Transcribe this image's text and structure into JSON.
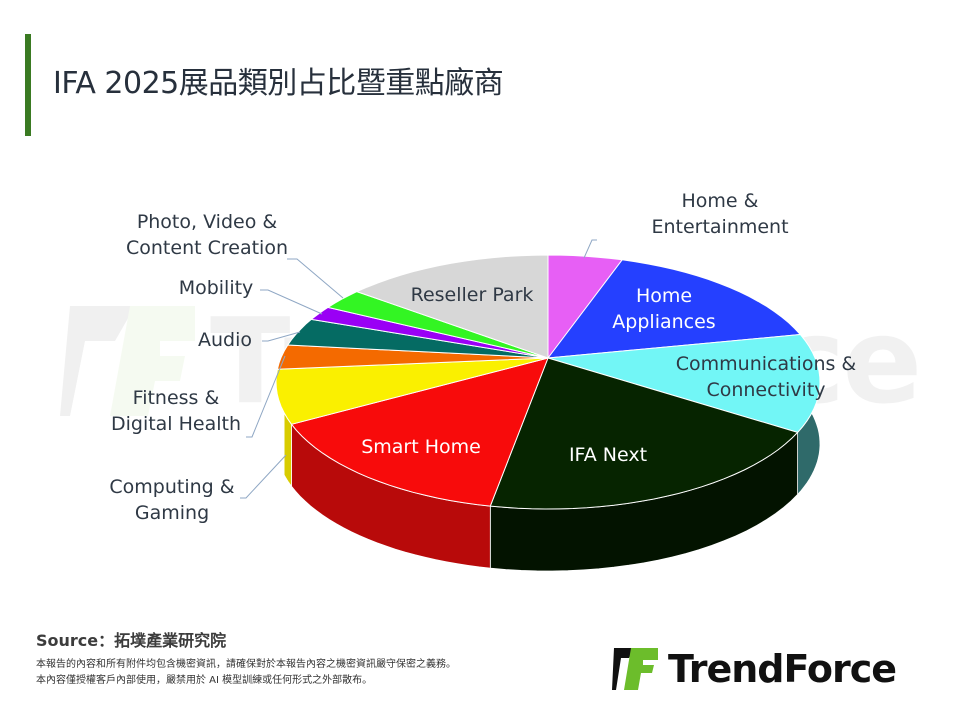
{
  "header": {
    "title": "IFA 2025展品類別占比暨重點廠商",
    "accent_color": "#3a7a22"
  },
  "chart_data": {
    "type": "pie",
    "title": "IFA 2025展品類別占比暨重點廠商",
    "style": "3d-pie",
    "start_angle_deg": 0,
    "direction": "clockwise",
    "slices": [
      {
        "label": "Home & Entertainment",
        "value": 4.4,
        "color": "#e75ff5",
        "side": "#b34bc0"
      },
      {
        "label": "Home Appliances",
        "value": 14.5,
        "color": "#2540ff",
        "side": "#1a2fbf"
      },
      {
        "label": "Communications & Connectivity",
        "value": 12.6,
        "color": "#72f6f6",
        "side": "#2f6a6a"
      },
      {
        "label": "IFA Next",
        "value": 21.9,
        "color": "#062400",
        "side": "#031300"
      },
      {
        "label": "Smart Home",
        "value": 16.2,
        "color": "#f80b0b",
        "side": "#b80a0a"
      },
      {
        "label": "Computing & Gaming",
        "value": 7.0,
        "color": "#faf000",
        "side": "#d8cc00"
      },
      {
        "label": "Fitness & Digital Health",
        "value": 3.1,
        "color": "#f46a00",
        "side": "#c05300"
      },
      {
        "label": "Audio",
        "value": 3.5,
        "color": "#056b63",
        "side": "#034a45"
      },
      {
        "label": "Mobility",
        "value": 1.8,
        "color": "#9a00f5",
        "side": "#6d00ad"
      },
      {
        "label": "Photo, Video & Content Creation",
        "value": 2.6,
        "color": "#33f523",
        "side": "#25b019"
      },
      {
        "label": "Reseller Park",
        "value": 12.4,
        "color": "#d7d7d7",
        "side": "#a8a8a8"
      }
    ],
    "legend": "none (data labels with leader lines)"
  },
  "labels": {
    "home_entertainment": [
      "Home &",
      "Entertainment"
    ],
    "home_appliances": [
      "Home",
      "Appliances"
    ],
    "communications": [
      "Communications &",
      "Connectivity"
    ],
    "ifa_next": "IFA Next",
    "smart_home": "Smart Home",
    "computing": [
      "Computing &",
      "Gaming"
    ],
    "fitness": [
      "Fitness &",
      "Digital Health"
    ],
    "audio": "Audio",
    "mobility": "Mobility",
    "photo": [
      "Photo, Video &",
      "Content Creation"
    ],
    "reseller": "Reseller Park"
  },
  "footer": {
    "source": "Source：拓墣產業研究院",
    "disclaimer_1": "本報告的內容和所有附件均包含機密資訊，請確保對於本報告內容之機密資訊嚴守保密之義務。",
    "disclaimer_2": "本內容僅授權客戶內部使用，嚴禁用於 AI 模型訓練或任何形式之外部散布。"
  },
  "logo": {
    "text": "TrendForce",
    "mark_colors": [
      "#111111",
      "#6cbd2b"
    ]
  },
  "watermark": {
    "text": "TrendForce"
  }
}
